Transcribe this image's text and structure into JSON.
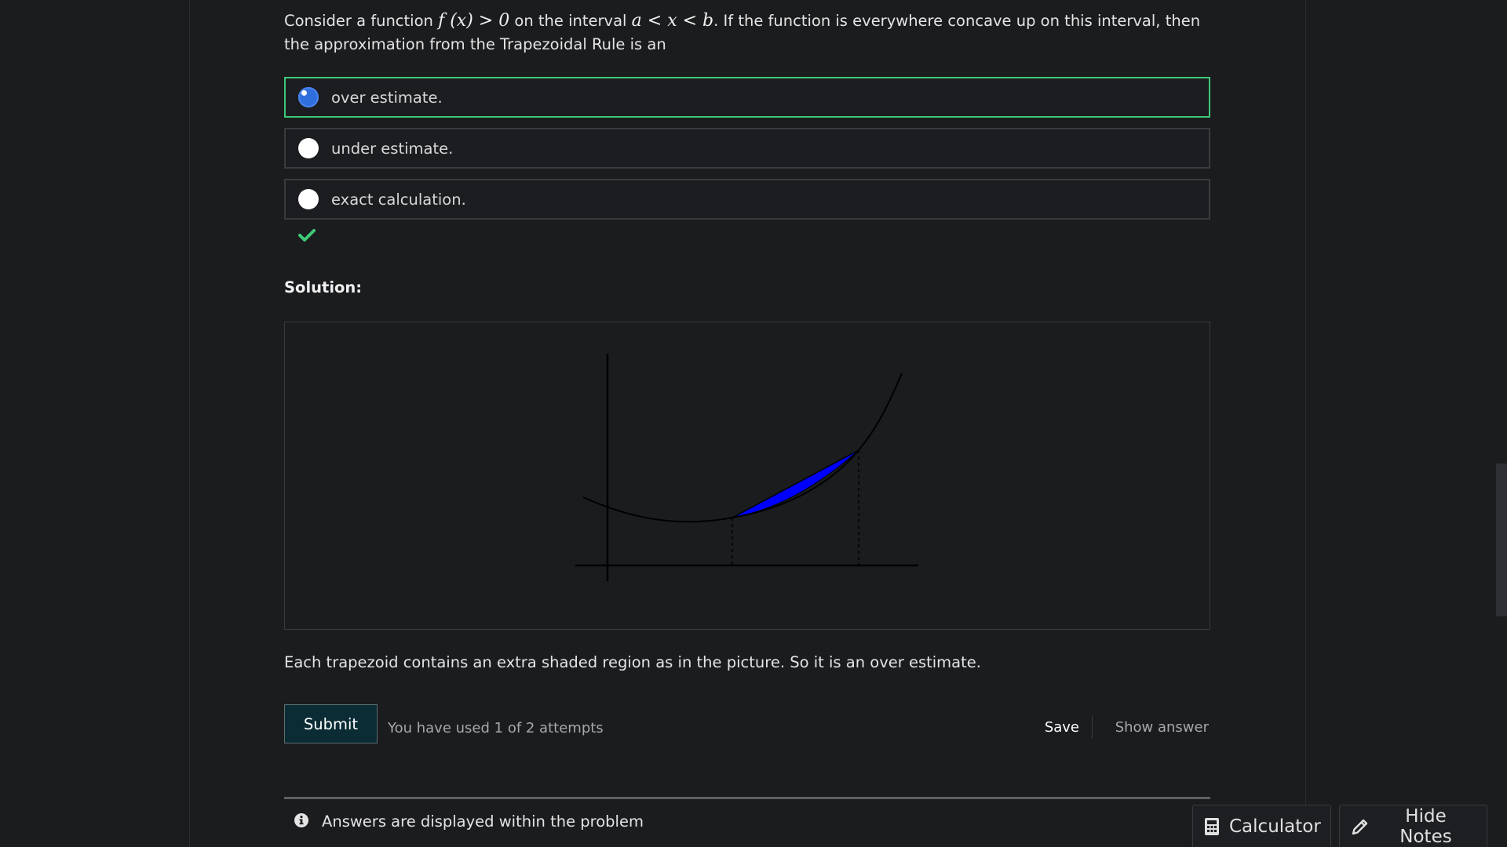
{
  "question": {
    "text_before": "Consider a function ",
    "math_fx": "f (x) > 0",
    "text_middle": " on the interval ",
    "math_interval": "a < x < b",
    "text_after": ". If the function is everywhere concave up on this interval, then the approximation from the Trapezoidal Rule is an"
  },
  "choices": [
    {
      "label": "over estimate.",
      "selected": true
    },
    {
      "label": "under estimate.",
      "selected": false
    },
    {
      "label": "exact calculation.",
      "selected": false
    }
  ],
  "status": {
    "icon": "checkmark-icon",
    "color": "#3ec979"
  },
  "solution": {
    "title": "Solution:",
    "explanation": "Each trapezoid contains an extra shaded region as in the picture. So it is an over estimate.",
    "figure": {
      "shaded_color": "#0000ff",
      "curve_color": "#000000"
    }
  },
  "actions": {
    "submit_label": "Submit",
    "attempts_text": "You have used 1 of 2 attempts",
    "save_label": "Save",
    "show_answer_label": "Show answer"
  },
  "notice": {
    "icon": "info-icon",
    "text": "Answers are displayed within the problem"
  },
  "tools": {
    "calculator_label": "Calculator",
    "hide_notes_label": "Hide Notes"
  },
  "colors": {
    "background": "#1b1c1e",
    "selected_border": "#3ec979",
    "radio_selected": "#2f6fdd",
    "submit_bg": "#0b2c34"
  }
}
